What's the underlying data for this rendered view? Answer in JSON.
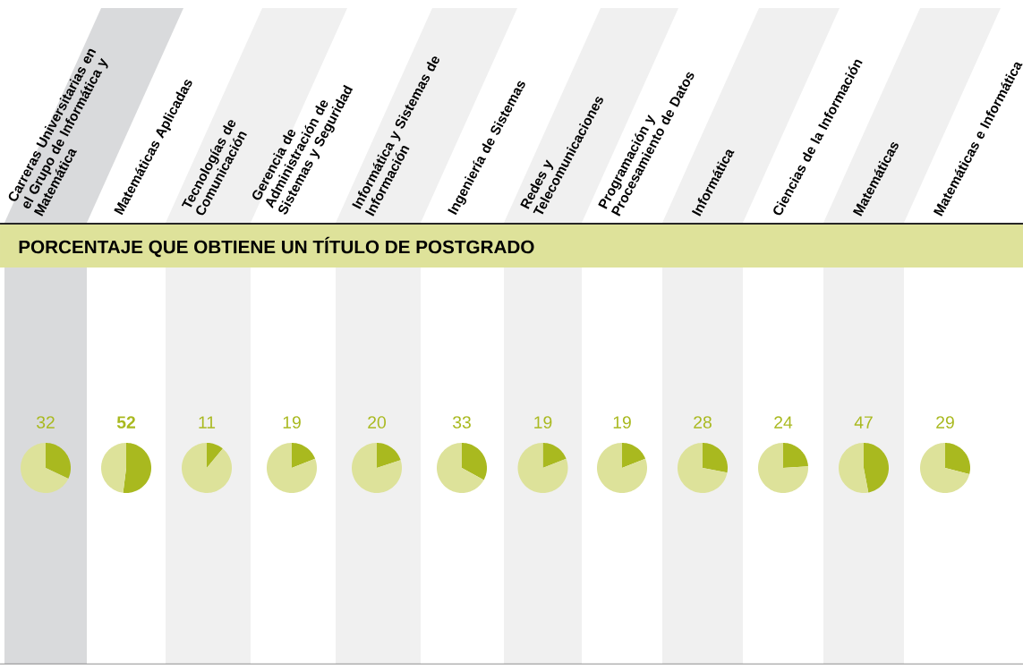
{
  "chart_data": [
    {
      "type": "pie",
      "title": "Carreras Universitarias en el Grupo de Informática y Matemática",
      "categories": [
        null,
        null
      ],
      "values": [
        32,
        68
      ],
      "colors": [
        "#a9b91f",
        "#dde29a"
      ],
      "value_labels": [
        "32",
        null
      ]
    },
    {
      "type": "pie",
      "title": "Matemáticas Aplicadas",
      "categories": [
        null,
        null
      ],
      "values": [
        52,
        48
      ],
      "colors": [
        "#a9b91f",
        "#dde29a"
      ],
      "value_labels": [
        "**52**",
        null
      ]
    },
    {
      "type": "pie",
      "title": "Tecnologías de Comunicación",
      "categories": [
        null,
        null
      ],
      "values": [
        11,
        89
      ],
      "colors": [
        "#a9b91f",
        "#dde29a"
      ],
      "value_labels": [
        "11",
        null
      ]
    },
    {
      "type": "pie",
      "title": "Gerencia de Administración de Sistemas y Seguridad",
      "categories": [
        null,
        null
      ],
      "values": [
        19,
        81
      ],
      "colors": [
        "#a9b91f",
        "#dde29a"
      ],
      "value_labels": [
        "19",
        null
      ]
    },
    {
      "type": "pie",
      "title": "Informática y Sistemas de Información",
      "categories": [
        null,
        null
      ],
      "values": [
        20,
        80
      ],
      "colors": [
        "#a9b91f",
        "#dde29a"
      ],
      "value_labels": [
        "20",
        null
      ]
    },
    {
      "type": "pie",
      "title": "Ingeniería de Sistemas",
      "categories": [
        null,
        null
      ],
      "values": [
        33,
        67
      ],
      "colors": [
        "#a9b91f",
        "#dde29a"
      ],
      "value_labels": [
        "33",
        null
      ]
    },
    {
      "type": "pie",
      "title": "Redes y Telecomunicaciones",
      "categories": [
        null,
        null
      ],
      "values": [
        19,
        81
      ],
      "colors": [
        "#a9b91f",
        "#dde29a"
      ],
      "value_labels": [
        "19",
        null
      ]
    },
    {
      "type": "pie",
      "title": "Programación y Procesamiento de Datos",
      "categories": [
        null,
        null
      ],
      "values": [
        19,
        81
      ],
      "colors": [
        "#a9b91f",
        "#dde29a"
      ],
      "value_labels": [
        "19",
        null
      ]
    },
    {
      "type": "pie",
      "title": "Informática",
      "categories": [
        null,
        null
      ],
      "values": [
        28,
        72
      ],
      "colors": [
        "#a9b91f",
        "#dde29a"
      ],
      "value_labels": [
        "28",
        null
      ]
    },
    {
      "type": "pie",
      "title": "Ciencias de la Información",
      "categories": [
        null,
        null
      ],
      "values": [
        24,
        76
      ],
      "colors": [
        "#a9b91f",
        "#dde29a"
      ],
      "value_labels": [
        "24",
        null
      ]
    },
    {
      "type": "pie",
      "title": "Matemáticas",
      "categories": [
        null,
        null
      ],
      "values": [
        47,
        53
      ],
      "colors": [
        "#a9b91f",
        "#dde29a"
      ],
      "value_labels": [
        "47",
        null
      ]
    },
    {
      "type": "pie",
      "title": "Matemáticas e Informática",
      "categories": [
        null,
        null
      ],
      "values": [
        29,
        71
      ],
      "colors": [
        "#a9b91f",
        "#dde29a"
      ],
      "value_labels": [
        "29",
        null
      ]
    },
    {
      "type": "other",
      "title": "PORCENTAJE QUE OBTIENE UN TÍTULO DE POSTGRADO"
    }
  ]
}
